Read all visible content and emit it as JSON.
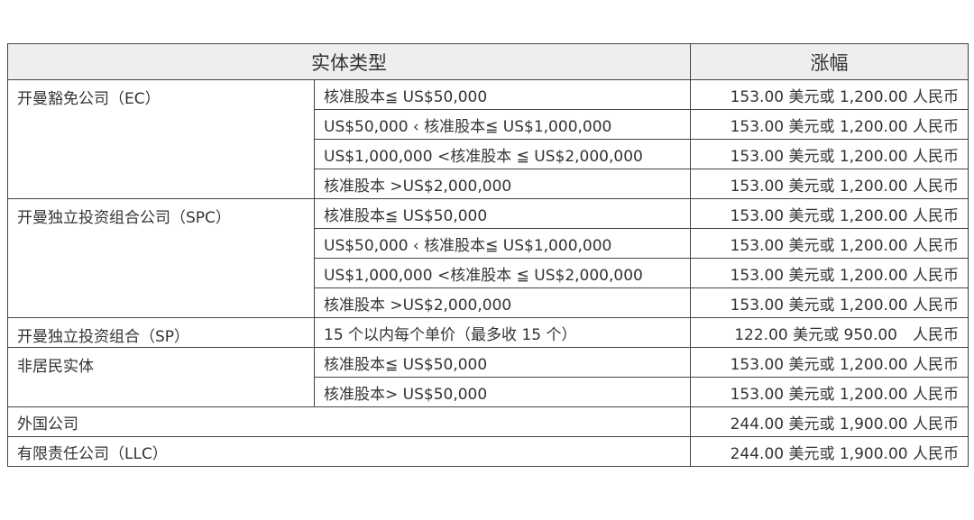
{
  "header": {
    "entity_type": "实体类型",
    "fee": "涨幅"
  },
  "groups": [
    {
      "name": "开曼豁免公司（EC）",
      "rows": [
        {
          "condition": "核准股本≦ US$50,000",
          "fee": "153.00 美元或 1,200.00 人民币"
        },
        {
          "condition": "US$50,000 ‹ 核准股本≦  US$1,000,000",
          "fee": "153.00 美元或 1,200.00 人民币"
        },
        {
          "condition": "US$1,000,000 <核准股本 ≦ US$2,000,000",
          "fee": "153.00 美元或 1,200.00 人民币"
        },
        {
          "condition": "核准股本 >US$2,000,000",
          "fee": "153.00 美元或 1,200.00 人民币"
        }
      ]
    },
    {
      "name": "开曼独立投资组合公司（SPC）",
      "rows": [
        {
          "condition": "核准股本≦ US$50,000",
          "fee": "153.00 美元或 1,200.00 人民币"
        },
        {
          "condition": "US$50,000 ‹ 核准股本≦  US$1,000,000",
          "fee": "153.00 美元或 1,200.00 人民币"
        },
        {
          "condition": "US$1,000,000 <核准股本 ≦ US$2,000,000",
          "fee": "153.00 美元或 1,200.00 人民币"
        },
        {
          "condition": "核准股本 >US$2,000,000",
          "fee": "153.00 美元或 1,200.00 人民币"
        }
      ]
    },
    {
      "name": "开曼独立投资组合（SP）",
      "rows": [
        {
          "condition": "15 个以内每个单价（最多收 15 个）",
          "fee": "122.00 美元或 950.00　人民币"
        }
      ]
    },
    {
      "name": "非居民实体",
      "rows": [
        {
          "condition": "核准股本≦ US$50,000",
          "fee": "153.00 美元或 1,200.00 人民币"
        },
        {
          "condition": "核准股本> US$50,000",
          "fee": "153.00 美元或 1,200.00 人民币"
        }
      ]
    }
  ],
  "single_rows": [
    {
      "name": "外国公司",
      "fee": "244.00 美元或 1,900.00 人民币"
    },
    {
      "name": "有限责任公司（LLC）",
      "fee": "244.00 美元或 1,900.00 人民币"
    }
  ]
}
